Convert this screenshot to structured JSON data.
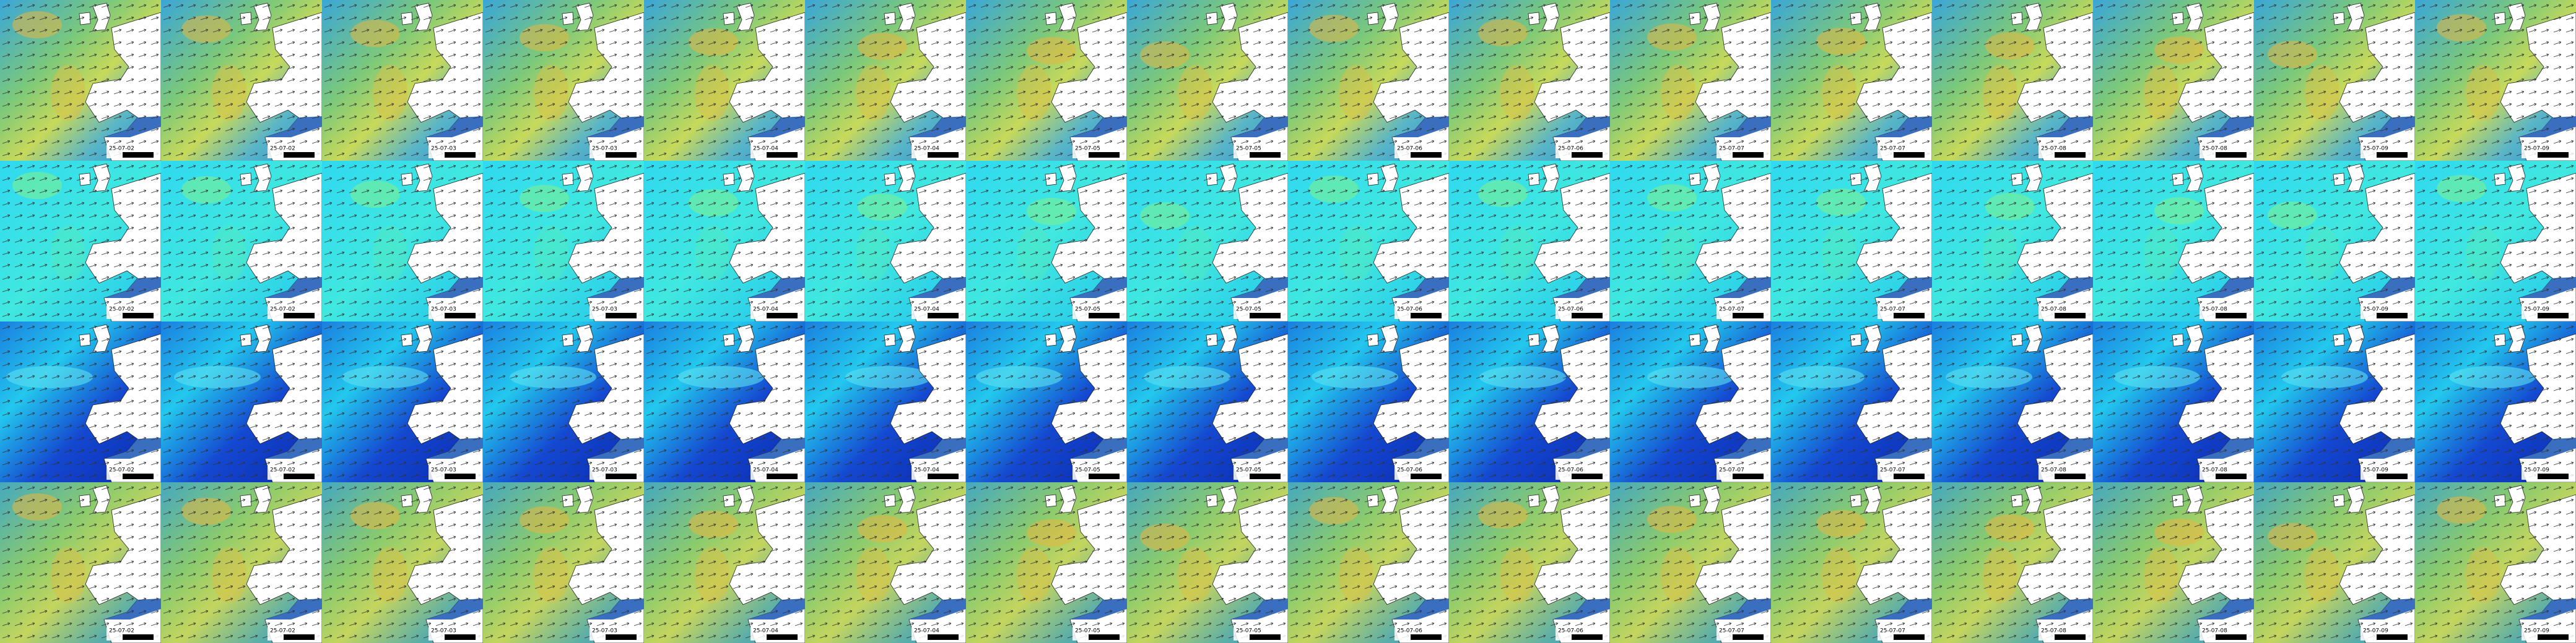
{
  "tiles": {
    "dates": [
      "25-07-02",
      "25-07-02",
      "25-07-03",
      "25-07-03",
      "25-07-04",
      "25-07-04",
      "25-07-05",
      "25-07-05",
      "25-07-06",
      "25-07-06",
      "25-07-07",
      "25-07-07",
      "25-07-08",
      "25-07-08",
      "25-07-09",
      "25-07-09"
    ]
  }
}
